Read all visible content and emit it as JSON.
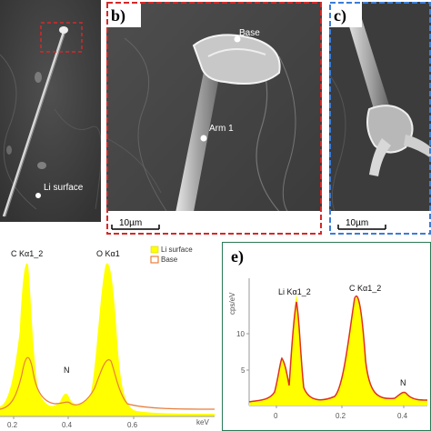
{
  "panels": {
    "a": {
      "point_label": "Li surface",
      "detail_box_color": "#d62828"
    },
    "b": {
      "label": "b)",
      "points": [
        "Base",
        "Arm 1"
      ],
      "scale_bar": "10µm",
      "border_color": "#d62828"
    },
    "c": {
      "label": "c)",
      "scale_bar": "10µm",
      "border_color": "#3b7dd8"
    },
    "d": {
      "peaks": [
        "C Kα1_2",
        "O Kα1",
        "N"
      ],
      "legend": [
        "Li surface",
        "Base"
      ],
      "unit": "keV",
      "ticks": [
        "0.2",
        "0.4",
        "0.6"
      ],
      "colors": {
        "li_surface": "#ffff00",
        "base": "#e97e3a"
      }
    },
    "e": {
      "label": "e)",
      "peaks": [
        "Li Kα1_2",
        "C Kα1_2",
        "N"
      ],
      "ylabel": "cps/eV",
      "yticks": [
        "10",
        "5"
      ],
      "xticks": [
        "0",
        "0.2",
        "0.4"
      ],
      "colors": {
        "fill": "#ffff00",
        "outline": "#e03020"
      }
    }
  }
}
